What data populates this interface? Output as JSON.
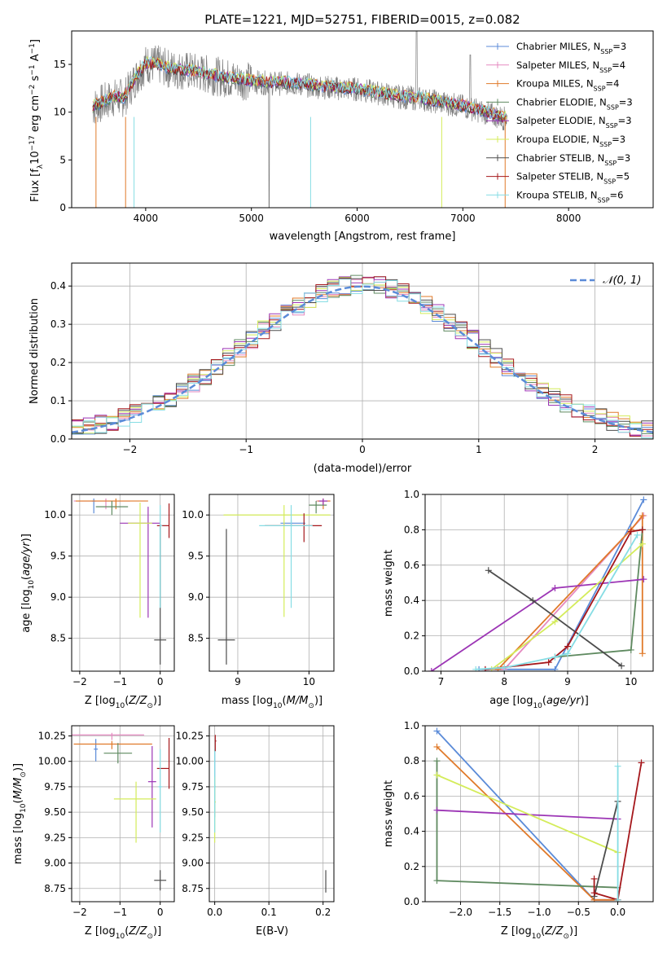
{
  "title": "PLATE=1221, MJD=52751, FIBERID=0015, z=0.082",
  "colors": {
    "Chabrier MILES": "#5b8bd8",
    "Salpeter MILES": "#e58ac0",
    "Kroupa MILES": "#e07a2a",
    "Chabrier ELODIE": "#5f8a60",
    "Salpeter ELODIE": "#9c35b5",
    "Kroupa ELODIE": "#d4ec5a",
    "Chabrier STELIB": "#4d4d4d",
    "Salpeter STELIB": "#a5171b",
    "Kroupa STELIB": "#86dde4",
    "data": "#7f7f7f"
  },
  "chart_data": [
    {
      "id": "spectrum",
      "type": "line",
      "xlabel": "wavelength [Angstrom, rest frame]",
      "ylabel": "Flux [f_λ 10^-17 erg cm^-2 s^-1 A^-1]",
      "xlim": [
        3300,
        8800
      ],
      "ylim": [
        0,
        18.5
      ],
      "xticks": [
        4000,
        5000,
        6000,
        7000,
        8000
      ],
      "yticks": [
        0,
        5,
        10,
        15
      ],
      "legend": [
        {
          "name": "Chabrier MILES",
          "label_main": "Chabrier MILES, N",
          "label_sub": "SSP",
          "label_tail": "=3"
        },
        {
          "name": "Salpeter MILES",
          "label_main": "Salpeter MILES, N",
          "label_sub": "SSP",
          "label_tail": "=4"
        },
        {
          "name": "Kroupa MILES",
          "label_main": "Kroupa MILES, N",
          "label_sub": "SSP",
          "label_tail": "=4"
        },
        {
          "name": "Chabrier ELODIE",
          "label_main": "Chabrier ELODIE, N",
          "label_sub": "SSP",
          "label_tail": "=3"
        },
        {
          "name": "Salpeter ELODIE",
          "label_main": "Salpeter ELODIE, N",
          "label_sub": "SSP",
          "label_tail": "=3"
        },
        {
          "name": "Kroupa ELODIE",
          "label_main": "Kroupa ELODIE, N",
          "label_sub": "SSP",
          "label_tail": "=3"
        },
        {
          "name": "Chabrier STELIB",
          "label_main": "Chabrier STELIB, N",
          "label_sub": "SSP",
          "label_tail": "=3"
        },
        {
          "name": "Salpeter STELIB",
          "label_main": "Salpeter STELIB, N",
          "label_sub": "SSP",
          "label_tail": "=5"
        },
        {
          "name": "Kroupa STELIB",
          "label_main": "Kroupa STELIB, N",
          "label_sub": "SSP",
          "label_tail": "=6"
        }
      ],
      "legend_position": "upper-right",
      "continuum": {
        "x": [
          3500,
          3600,
          3700,
          3800,
          3900,
          4000,
          4100,
          4200,
          4300,
          4400,
          4600,
          4800,
          5000,
          5200,
          5400,
          5600,
          5800,
          6000,
          6200,
          6400,
          6600,
          6800,
          7000,
          7200,
          7400
        ],
        "y": [
          10.5,
          11.0,
          11.5,
          11.5,
          13.5,
          15.0,
          15.0,
          14.6,
          14.4,
          14.3,
          13.9,
          13.5,
          13.2,
          13.0,
          13.0,
          12.7,
          12.5,
          12.4,
          12.0,
          11.6,
          11.4,
          11.0,
          10.6,
          10.0,
          9.3
        ]
      }
    },
    {
      "id": "residuals",
      "type": "line",
      "xlabel": "(data-model)/error",
      "ylabel": "Normed distribution",
      "xlim": [
        -2.5,
        2.5
      ],
      "ylim": [
        0,
        0.46
      ],
      "xticks": [
        -2,
        -1,
        0,
        1,
        2
      ],
      "yticks": [
        0.0,
        0.1,
        0.2,
        0.3,
        0.4
      ],
      "gaussian_label": "𝒩(0, 1)",
      "legend_position": "upper-right",
      "bin_width": 0.1,
      "grid": true
    },
    {
      "id": "age_vs_Z",
      "type": "scatter",
      "xlabel": "Z [log10(Z/Z⊙)]",
      "ylabel": "age  [log10(age/yr)]",
      "xlim": [
        -2.2,
        0.35
      ],
      "ylim": [
        8.1,
        10.25
      ],
      "xticks": [
        -2,
        -1,
        0
      ],
      "yticks": [
        8.5,
        9.0,
        9.5,
        10.0
      ],
      "grid": true,
      "points": [
        {
          "model": "Chabrier MILES",
          "x": -1.65,
          "xerr": [
            0.05,
            0.05
          ],
          "y": 10.17,
          "yerr": [
            0.15,
            0.03
          ]
        },
        {
          "model": "Salpeter MILES",
          "x": -1.35,
          "xerr": [
            0.8,
            0.6
          ],
          "y": 10.17,
          "yerr": [
            0.1,
            0.03
          ]
        },
        {
          "model": "Kroupa MILES",
          "x": -1.1,
          "xerr": [
            1.0,
            0.8
          ],
          "y": 10.17,
          "yerr": [
            0.1,
            0.03
          ]
        },
        {
          "model": "Chabrier ELODIE",
          "x": -1.2,
          "xerr": [
            0.4,
            0.4
          ],
          "y": 10.1,
          "yerr": [
            0.1,
            0.07
          ]
        },
        {
          "model": "Salpeter ELODIE",
          "x": -0.3,
          "xerr": [
            0.7,
            0.3
          ],
          "y": 9.9,
          "yerr": [
            1.15,
            0.2
          ]
        },
        {
          "model": "Kroupa ELODIE",
          "x": -0.5,
          "xerr": [
            0.3,
            0.3
          ],
          "y": 9.9,
          "yerr": [
            1.15,
            0.25
          ]
        },
        {
          "model": "Chabrier STELIB",
          "x": 0.0,
          "xerr": [
            0.15,
            0.15
          ],
          "y": 8.48,
          "yerr": [
            0.3,
            1.4
          ]
        },
        {
          "model": "Salpeter STELIB",
          "x": 0.22,
          "xerr": [
            0.3,
            0.0
          ],
          "y": 9.87,
          "yerr": [
            0.15,
            0.27
          ]
        },
        {
          "model": "Kroupa STELIB",
          "x": 0.0,
          "xerr": [
            0.0,
            0.05
          ],
          "y": 9.87,
          "yerr": [
            1.0,
            0.25
          ]
        }
      ]
    },
    {
      "id": "age_vs_mass",
      "type": "scatter",
      "xlabel": "mass [log10(M/M⊙)]",
      "ylabel": "",
      "xlim": [
        8.6,
        10.35
      ],
      "ylim": [
        8.1,
        10.25
      ],
      "xticks": [
        9,
        10
      ],
      "yticks": [
        8.5,
        9.0,
        9.5,
        10.0
      ],
      "grid": true,
      "points": [
        {
          "model": "Chabrier MILES",
          "x": 9.75,
          "xerr": [
            0.15,
            0.2
          ],
          "y": 9.9,
          "yerr": [
            0.04,
            0.04
          ]
        },
        {
          "model": "Salpeter MILES",
          "x": 10.2,
          "xerr": [
            0.1,
            0.1
          ],
          "y": 10.17,
          "yerr": [
            0.04,
            0.03
          ]
        },
        {
          "model": "Kroupa MILES",
          "x": 10.2,
          "xerr": [
            0.08,
            0.1
          ],
          "y": 10.17,
          "yerr": [
            0.1,
            0.03
          ]
        },
        {
          "model": "Chabrier ELODIE",
          "x": 10.1,
          "xerr": [
            0.1,
            0.15
          ],
          "y": 10.12,
          "yerr": [
            0.1,
            0.05
          ]
        },
        {
          "model": "Salpeter ELODIE",
          "x": 10.2,
          "xerr": [
            0.06,
            0.06
          ],
          "y": 10.17,
          "yerr": [
            0.05,
            0.03
          ]
        },
        {
          "model": "Kroupa ELODIE",
          "x": 9.65,
          "xerr": [
            0.85,
            0.65
          ],
          "y": 10.0,
          "yerr": [
            1.24,
            0.12
          ]
        },
        {
          "model": "Chabrier STELIB",
          "x": 8.84,
          "xerr": [
            0.12,
            0.12
          ],
          "y": 8.48,
          "yerr": [
            0.3,
            1.35
          ]
        },
        {
          "model": "Salpeter STELIB",
          "x": 9.93,
          "xerr": [
            0.55,
            0.25
          ],
          "y": 9.87,
          "yerr": [
            0.2,
            0.15
          ]
        },
        {
          "model": "Kroupa STELIB",
          "x": 9.75,
          "xerr": [
            0.45,
            0.3
          ],
          "y": 9.87,
          "yerr": [
            1.0,
            0.25
          ]
        }
      ]
    },
    {
      "id": "massweight_vs_age",
      "type": "line",
      "xlabel": "age  [log10(age/yr)]",
      "ylabel": "mass weight",
      "xlim": [
        6.75,
        10.35
      ],
      "ylim": [
        0,
        1.0
      ],
      "xticks": [
        7,
        8,
        9,
        10
      ],
      "yticks": [
        0.0,
        0.2,
        0.4,
        0.6,
        0.8,
        1.0
      ],
      "grid": true,
      "series": [
        {
          "model": "Chabrier MILES",
          "x": [
            7.6,
            8.8,
            10.2
          ],
          "y": [
            0.01,
            0.01,
            0.97
          ]
        },
        {
          "model": "Salpeter MILES",
          "x": [
            7.7,
            8.0,
            10.2
          ],
          "y": [
            0.01,
            0.01,
            0.88
          ]
        },
        {
          "model": "Kroupa MILES",
          "x": [
            7.9,
            10.0,
            10.18,
            10.18
          ],
          "y": [
            0.01,
            0.8,
            0.88,
            0.1
          ]
        },
        {
          "model": "Chabrier ELODIE",
          "x": [
            8.8,
            10.0,
            10.18
          ],
          "y": [
            0.08,
            0.12,
            0.8
          ]
        },
        {
          "model": "Salpeter ELODIE",
          "x": [
            6.85,
            8.8,
            10.2
          ],
          "y": [
            0.0,
            0.47,
            0.52
          ]
        },
        {
          "model": "Kroupa ELODIE",
          "x": [
            7.8,
            8.8,
            10.18
          ],
          "y": [
            0.01,
            0.28,
            0.72
          ]
        },
        {
          "model": "Chabrier STELIB",
          "x": [
            7.75,
            8.45,
            9.85
          ],
          "y": [
            0.57,
            0.4,
            0.03
          ]
        },
        {
          "model": "Salpeter STELIB",
          "x": [
            7.7,
            8.7,
            9.0,
            10.0,
            10.18
          ],
          "y": [
            0.01,
            0.05,
            0.14,
            0.79,
            0.8
          ]
        },
        {
          "model": "Kroupa STELIB",
          "x": [
            7.55,
            8.0,
            8.8,
            9.0,
            10.1
          ],
          "y": [
            0.01,
            0.02,
            0.08,
            0.1,
            0.77
          ]
        }
      ]
    },
    {
      "id": "mass_vs_Z",
      "type": "scatter",
      "xlabel": "Z [log10(Z/Z⊙)]",
      "ylabel": "mass [log10(M/M⊙)]",
      "xlim": [
        -2.2,
        0.35
      ],
      "ylim": [
        8.62,
        10.35
      ],
      "xticks": [
        -2,
        -1,
        0
      ],
      "yticks": [
        8.75,
        9.0,
        9.25,
        9.5,
        9.75,
        10.0,
        10.25
      ],
      "grid": true,
      "points": [
        {
          "model": "Chabrier MILES",
          "x": -1.6,
          "xerr": [
            0.05,
            0.05
          ],
          "y": 10.12,
          "yerr": [
            0.12,
            0.1
          ]
        },
        {
          "model": "Salpeter MILES",
          "x": -1.2,
          "xerr": [
            1.0,
            0.8
          ],
          "y": 10.26,
          "yerr": [
            0.05,
            0.02
          ]
        },
        {
          "model": "Kroupa MILES",
          "x": -1.2,
          "xerr": [
            0.95,
            1.0
          ],
          "y": 10.17,
          "yerr": [
            0.05,
            0.03
          ]
        },
        {
          "model": "Chabrier ELODIE",
          "x": -1.05,
          "xerr": [
            0.35,
            0.35
          ],
          "y": 10.08,
          "yerr": [
            0.1,
            0.1
          ]
        },
        {
          "model": "Salpeter ELODIE",
          "x": -0.2,
          "xerr": [
            0.1,
            0.1
          ],
          "y": 9.8,
          "yerr": [
            0.45,
            0.35
          ]
        },
        {
          "model": "Kroupa ELODIE",
          "x": -0.6,
          "xerr": [
            0.55,
            0.5
          ],
          "y": 9.63,
          "yerr": [
            0.43,
            0.17
          ]
        },
        {
          "model": "Chabrier STELIB",
          "x": 0.0,
          "xerr": [
            0.15,
            0.15
          ],
          "y": 8.83,
          "yerr": [
            0.1,
            0.1
          ]
        },
        {
          "model": "Salpeter STELIB",
          "x": 0.22,
          "xerr": [
            0.3,
            0.0
          ],
          "y": 9.93,
          "yerr": [
            0.2,
            0.3
          ]
        },
        {
          "model": "Kroupa STELIB",
          "x": 0.0,
          "xerr": [
            0.05,
            0.05
          ],
          "y": 9.75,
          "yerr": [
            0.45,
            0.37
          ]
        }
      ]
    },
    {
      "id": "mass_vs_EBV",
      "type": "scatter",
      "xlabel": "E(B-V)",
      "ylabel": "",
      "xlim": [
        -0.01,
        0.22
      ],
      "ylim": [
        8.62,
        10.35
      ],
      "xticks": [
        0.0,
        0.1,
        0.2
      ],
      "yticks": [
        8.75,
        9.0,
        9.25,
        9.5,
        9.75,
        10.0,
        10.25
      ],
      "grid": true,
      "points": [
        {
          "model": "Chabrier MILES",
          "x": 0.0,
          "xerr": [
            0.0,
            0.002
          ],
          "y": 9.75,
          "yerr": [
            0.3,
            0.35
          ]
        },
        {
          "model": "Kroupa ELODIE",
          "x": 0.0,
          "xerr": [
            0.0,
            0.002
          ],
          "y": 9.6,
          "yerr": [
            0.4,
            0.25
          ]
        },
        {
          "model": "Kroupa STELIB",
          "x": 0.0,
          "xerr": [
            0.0,
            0.002
          ],
          "y": 9.75,
          "yerr": [
            0.45,
            0.37
          ]
        },
        {
          "model": "Salpeter STELIB",
          "x": 0.001,
          "xerr": [
            0.0,
            0.002
          ],
          "y": 10.2,
          "yerr": [
            0.1,
            0.06
          ]
        },
        {
          "model": "Chabrier STELIB",
          "x": 0.205,
          "xerr": [
            0.0,
            0.0
          ],
          "y": 8.83,
          "yerr": [
            0.12,
            0.1
          ]
        }
      ]
    },
    {
      "id": "massweight_vs_Z",
      "type": "line",
      "xlabel": "Z [log10(Z/Z⊙)]",
      "ylabel": "mass weight",
      "xlim": [
        -2.45,
        0.45
      ],
      "ylim": [
        0,
        1.0
      ],
      "xticks": [
        -2.0,
        -1.5,
        -1.0,
        -0.5,
        0.0
      ],
      "yticks": [
        0.0,
        0.2,
        0.4,
        0.6,
        0.8,
        1.0
      ],
      "grid": true,
      "series": [
        {
          "model": "Chabrier MILES",
          "x": [
            -2.3,
            -0.3,
            0.0
          ],
          "y": [
            0.97,
            0.01,
            0.01
          ]
        },
        {
          "model": "Salpeter MILES",
          "x": [
            -0.3,
            -0.3,
            0.0
          ],
          "y": [
            0.01,
            0.01,
            0.01
          ]
        },
        {
          "model": "Kroupa MILES",
          "x": [
            -2.3,
            -0.3,
            0.0
          ],
          "y": [
            0.88,
            0.01,
            0.01
          ]
        },
        {
          "model": "Chabrier ELODIE",
          "x": [
            -2.3,
            -2.3,
            0.0
          ],
          "y": [
            0.8,
            0.12,
            0.08
          ]
        },
        {
          "model": "Salpeter ELODIE",
          "x": [
            -2.3,
            0.0
          ],
          "y": [
            0.52,
            0.47
          ]
        },
        {
          "model": "Kroupa ELODIE",
          "x": [
            -2.3,
            0.0
          ],
          "y": [
            0.72,
            0.28
          ]
        },
        {
          "model": "Chabrier STELIB",
          "x": [
            -0.3,
            0.0
          ],
          "y": [
            0.03,
            0.57
          ]
        },
        {
          "model": "Salpeter STELIB",
          "x": [
            -0.3,
            -0.3,
            0.0,
            0.3
          ],
          "y": [
            0.13,
            0.05,
            0.01,
            0.79
          ]
        },
        {
          "model": "Kroupa STELIB",
          "x": [
            0.0,
            0.0
          ],
          "y": [
            0.01,
            0.77
          ]
        }
      ]
    }
  ]
}
